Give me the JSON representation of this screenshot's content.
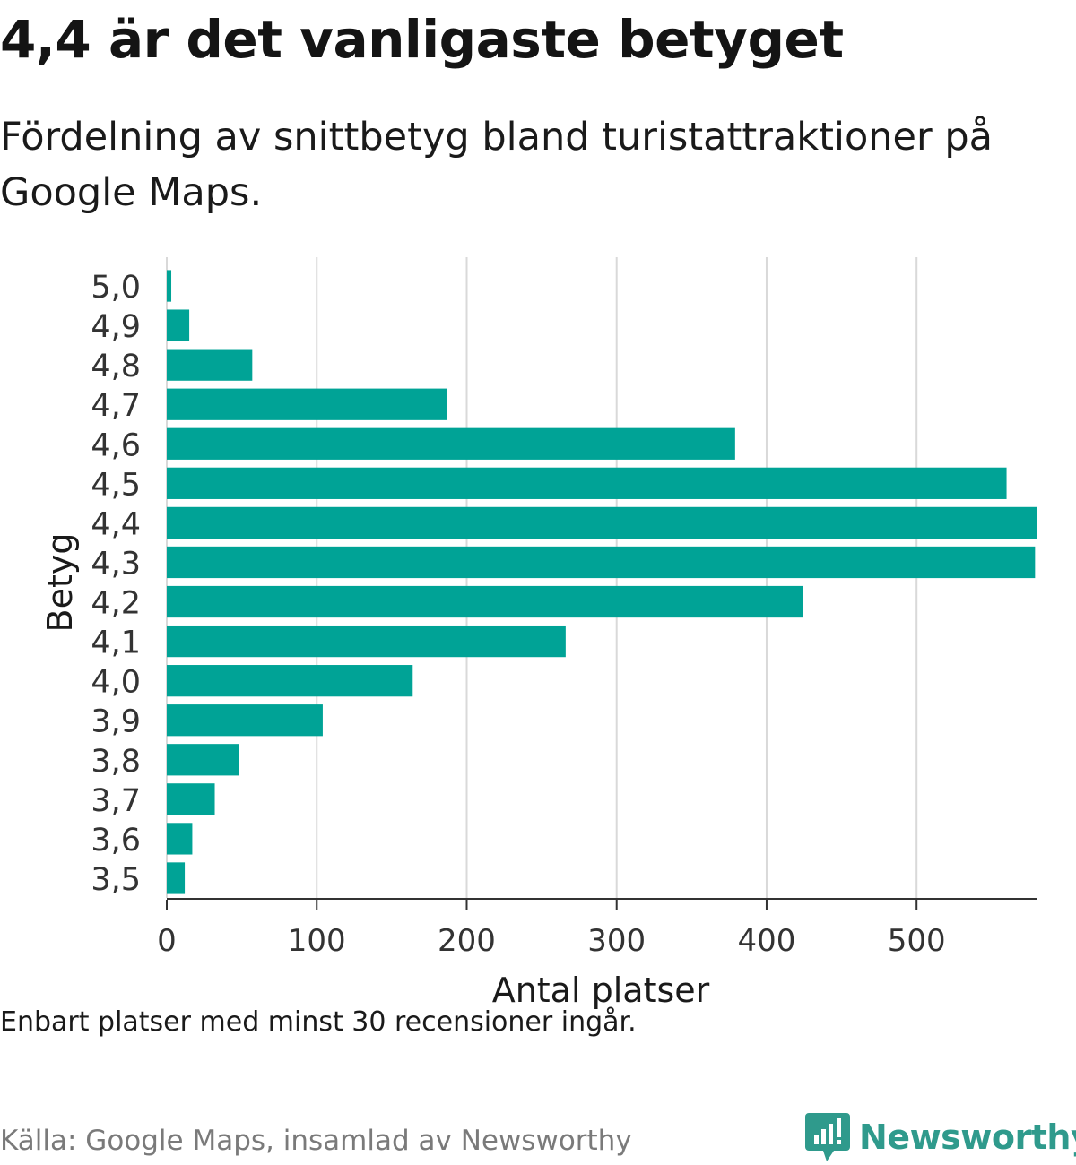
{
  "header": {
    "title": "4,4 är det vanligaste betyget",
    "subtitle": "Fördelning av snittbetyg bland turistattraktioner på Google Maps."
  },
  "footer": {
    "note": "Enbart platser med minst 30 recensioner ingår.",
    "source": "Källa: Google Maps, insamlad av Newsworthy",
    "brand": "Newsworthy",
    "brand_icon": "newsworthy-logo-icon"
  },
  "colors": {
    "bar": "#00a396",
    "grid": "#d9d9d9",
    "axis": "#333333",
    "brand": "#2f9a8c"
  },
  "chart_data": {
    "type": "bar",
    "orientation": "horizontal",
    "categories": [
      "5,0",
      "4,9",
      "4,8",
      "4,7",
      "4,6",
      "4,5",
      "4,4",
      "4,3",
      "4,2",
      "4,1",
      "4,0",
      "3,9",
      "3,8",
      "3,7",
      "3,6",
      "3,5"
    ],
    "values": [
      3,
      15,
      57,
      187,
      379,
      560,
      580,
      579,
      424,
      266,
      164,
      104,
      48,
      32,
      17,
      12
    ],
    "xlabel": "Antal platser",
    "ylabel": "Betyg",
    "xticks": [
      0,
      100,
      200,
      300,
      400,
      500
    ],
    "xlim": [
      0,
      580
    ],
    "grid": "vertical"
  }
}
